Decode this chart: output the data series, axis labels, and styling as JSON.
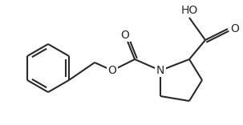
{
  "bg_color": "#ffffff",
  "line_color": "#2a2a2a",
  "line_width": 1.5,
  "fig_width": 3.03,
  "fig_height": 1.56,
  "dpi": 100,
  "xlim": [
    0,
    303
  ],
  "ylim": [
    0,
    156
  ]
}
